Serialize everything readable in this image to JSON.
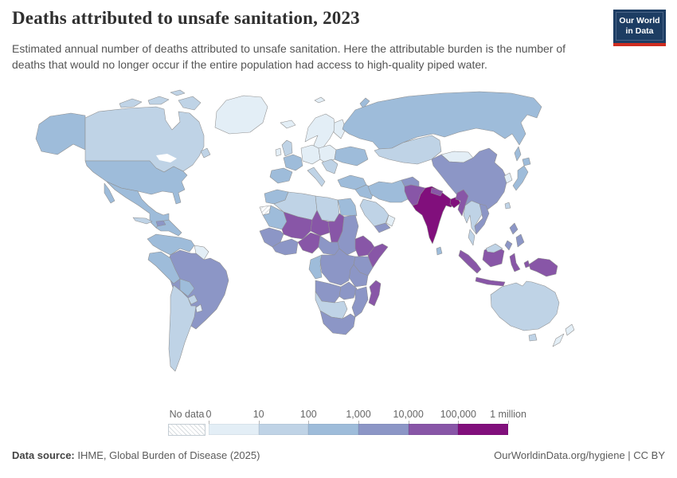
{
  "header": {
    "title": "Deaths attributed to unsafe sanitation, 2023",
    "subtitle": "Estimated annual number of deaths attributed to unsafe sanitation. Here the attributable burden is the number of deaths that would no longer occur if the entire population had access to high-quality piped water.",
    "logo": {
      "line1": "Our World",
      "line2": "in Data",
      "bg_color": "#1d3d63",
      "accent_color": "#cf2d20"
    }
  },
  "legend": {
    "no_data_label": "No data",
    "ticks": [
      "0",
      "10",
      "100",
      "1,000",
      "10,000",
      "100,000",
      "1 million"
    ]
  },
  "footer": {
    "source_label": "Data source:",
    "source_text": " IHME, Global Burden of Disease (2025)",
    "right_text": "OurWorldinData.org/hygiene | CC BY"
  },
  "chart_data": {
    "type": "choropleth-map",
    "title": "Deaths attributed to unsafe sanitation, 2023",
    "unit": "deaths",
    "scale": "logarithmic bins",
    "bin_edges": [
      "0",
      "10",
      "100",
      "1,000",
      "10,000",
      "100,000",
      "1 million"
    ],
    "bin_colors": [
      "#e3eef6",
      "#bfd3e6",
      "#9ebcda",
      "#8c96c6",
      "#8856a7",
      "#810f7c"
    ],
    "no_data_fill": "hatched",
    "regions": {
      "greenland": 0,
      "iceland": 0,
      "svalbard": 0,
      "canada": 1,
      "usa": 2,
      "mexico": 2,
      "central-america": 2,
      "cuba": 1,
      "hispaniola": 3,
      "colombia-venezuela": 2,
      "guyanas": 0,
      "brazil": 3,
      "peru-ecuador": 2,
      "bolivia": 2,
      "paraguay": 1,
      "uruguay": 0,
      "argentina-chile": 1,
      "scandinavia": 0,
      "finland": 0,
      "ireland": 0,
      "uk": 1,
      "france": 2,
      "iberia": 2,
      "germany-central": 0,
      "poland-baltics": 0,
      "italy": 1,
      "balkans": 1,
      "ukraine": 2,
      "turkey": 2,
      "russia": 2,
      "kazakhstan-central-asia": 1,
      "mongolia": 0,
      "china": 3,
      "korea": 0,
      "japan": 2,
      "taiwan": 1,
      "iraq-syria": 2,
      "iran": 2,
      "saudi-arabia": 1,
      "yemen": 3,
      "oman": 0,
      "afghanistan": 3,
      "pakistan": 4,
      "india": 5,
      "nepal": 4,
      "bangladesh": 5,
      "sri-lanka": 2,
      "myanmar": 4,
      "thailand-laos-cambodia": 1,
      "vietnam": 3,
      "malay-peninsula": 1,
      "philippines": 3,
      "indonesia-sumatra": 4,
      "borneo-indonesia": 4,
      "borneo-malaysia": 1,
      "indonesia-java": 4,
      "sulawesi": 4,
      "lesser-sunda": 4,
      "maluku": 4,
      "new-guinea": 4,
      "australia": 1,
      "tasmania": 1,
      "new-zealand": 0,
      "morocco": 2,
      "western-sahara": null,
      "algeria": 1,
      "libya": 1,
      "egypt": 2,
      "mauritania": 2,
      "mali": 4,
      "niger": 4,
      "chad": 4,
      "senegal-guinea": 3,
      "ivory-ghana": 3,
      "nigeria": 4,
      "cameroon-car": 3,
      "sudan": 3,
      "ethiopia": 4,
      "somalia": 4,
      "gabon-congo": 2,
      "drc": 3,
      "uganda-kenya": 3,
      "tanzania": 3,
      "angola": 3,
      "zambia": 3,
      "mozambique-zimbabwe": 3,
      "namibia-botswana": 1,
      "south-africa": 3,
      "madagascar": 4
    }
  }
}
